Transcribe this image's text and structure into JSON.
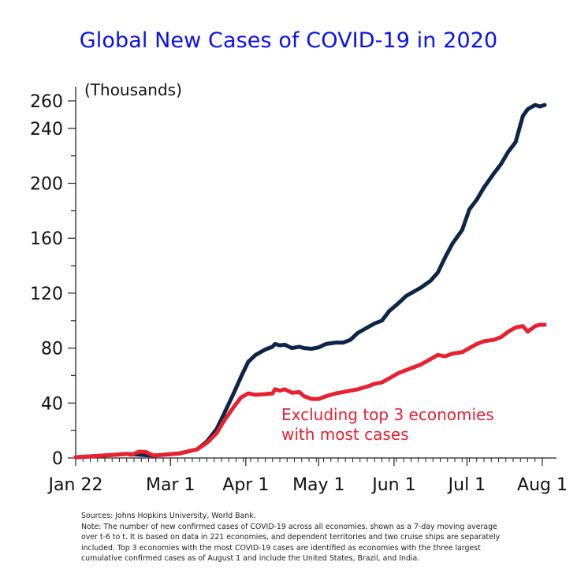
{
  "chart_data": {
    "type": "line",
    "title": "Global New Cases of COVID-19 in 2020",
    "ylabel": "(Thousands)",
    "xlabel": "",
    "ylim": [
      0,
      260
    ],
    "yticks": [
      0,
      40,
      80,
      120,
      160,
      200,
      240,
      260
    ],
    "ytick_labels": [
      "0",
      "40",
      "80",
      "120",
      "160",
      "200",
      "240",
      "260"
    ],
    "x_unit": "days since Jan 22, 2020",
    "xlim": [
      0,
      193
    ],
    "xticks": [
      0,
      39,
      70,
      100,
      131,
      161,
      192
    ],
    "xtick_labels": [
      "Jan 22",
      "Mar 1",
      "Apr 1",
      "May 1",
      "Jun 1",
      "Jul 1",
      "Aug 1"
    ],
    "grid": false,
    "legend": "none",
    "annotations": [
      {
        "text_lines": [
          "Excluding top 3 economies",
          "with most cases"
        ],
        "series": "Excluding top 3 economies",
        "position": "below-right of red line"
      }
    ],
    "series": [
      {
        "name": "Global",
        "color": "#0b2649",
        "x": [
          0,
          11,
          21,
          32,
          43,
          50,
          54,
          58,
          61,
          65,
          68,
          71,
          74,
          78,
          81,
          82,
          84,
          86,
          89,
          92,
          94,
          97,
          100,
          103,
          107,
          110,
          113,
          116,
          120,
          123,
          126,
          129,
          133,
          136,
          139,
          142,
          146,
          149,
          152,
          155,
          159,
          162,
          165,
          168,
          172,
          175,
          178,
          181,
          184,
          186,
          189,
          191,
          193
        ],
        "values": [
          0.5,
          1.7,
          2.9,
          1.7,
          3.4,
          6.3,
          12,
          21,
          32,
          47,
          59,
          70,
          75,
          79,
          81,
          83,
          82,
          82.5,
          80,
          81,
          80,
          79.5,
          80.5,
          83,
          84,
          84,
          86,
          91,
          95,
          98,
          100,
          107,
          113,
          118,
          121,
          124,
          129,
          135,
          146,
          156,
          166,
          181,
          188,
          197,
          207,
          214,
          223,
          230,
          249,
          254,
          257,
          256,
          257
        ]
      },
      {
        "name": "Excluding top 3 economies",
        "color": "#e8202f",
        "x": [
          0,
          11,
          21,
          23,
          26,
          29,
          32,
          43,
          50,
          54,
          58,
          61,
          65,
          68,
          71,
          74,
          78,
          81,
          82,
          84,
          86,
          89,
          92,
          94,
          97,
          100,
          103,
          107,
          110,
          113,
          116,
          120,
          123,
          126,
          129,
          133,
          136,
          139,
          142,
          146,
          149,
          152,
          155,
          159,
          162,
          165,
          168,
          172,
          175,
          178,
          181,
          184,
          186,
          189,
          191,
          193
        ],
        "values": [
          0.5,
          1.7,
          2.9,
          2.3,
          4.6,
          4.3,
          1.7,
          3.4,
          6.3,
          11,
          18,
          27,
          37,
          44,
          47,
          46,
          46.5,
          47,
          50,
          49,
          50,
          47.5,
          48,
          45,
          43,
          43,
          45,
          47,
          48,
          49,
          50,
          52,
          54,
          55,
          58,
          62,
          64,
          66,
          68,
          72,
          75,
          74,
          76,
          77,
          80,
          83,
          85,
          86,
          88,
          92,
          95,
          96,
          92,
          96,
          97,
          97
        ]
      }
    ]
  },
  "notes": {
    "sources": "Sources: Johns Hopkins University, World Bank.",
    "note_lines": [
      "Note: The number of new confirmed cases of COVID-19 across all economies, shown as a 7-day moving average",
      "over t-6 to t. It is based on data in 221 economies, and dependent territories and two cruise ships are separately",
      "included. Top 3 economies with the most COVID-19 cases are identified as economies with the three largest",
      "cumulative confirmed cases as of August 1 and include the United States, Brazil, and India."
    ]
  }
}
